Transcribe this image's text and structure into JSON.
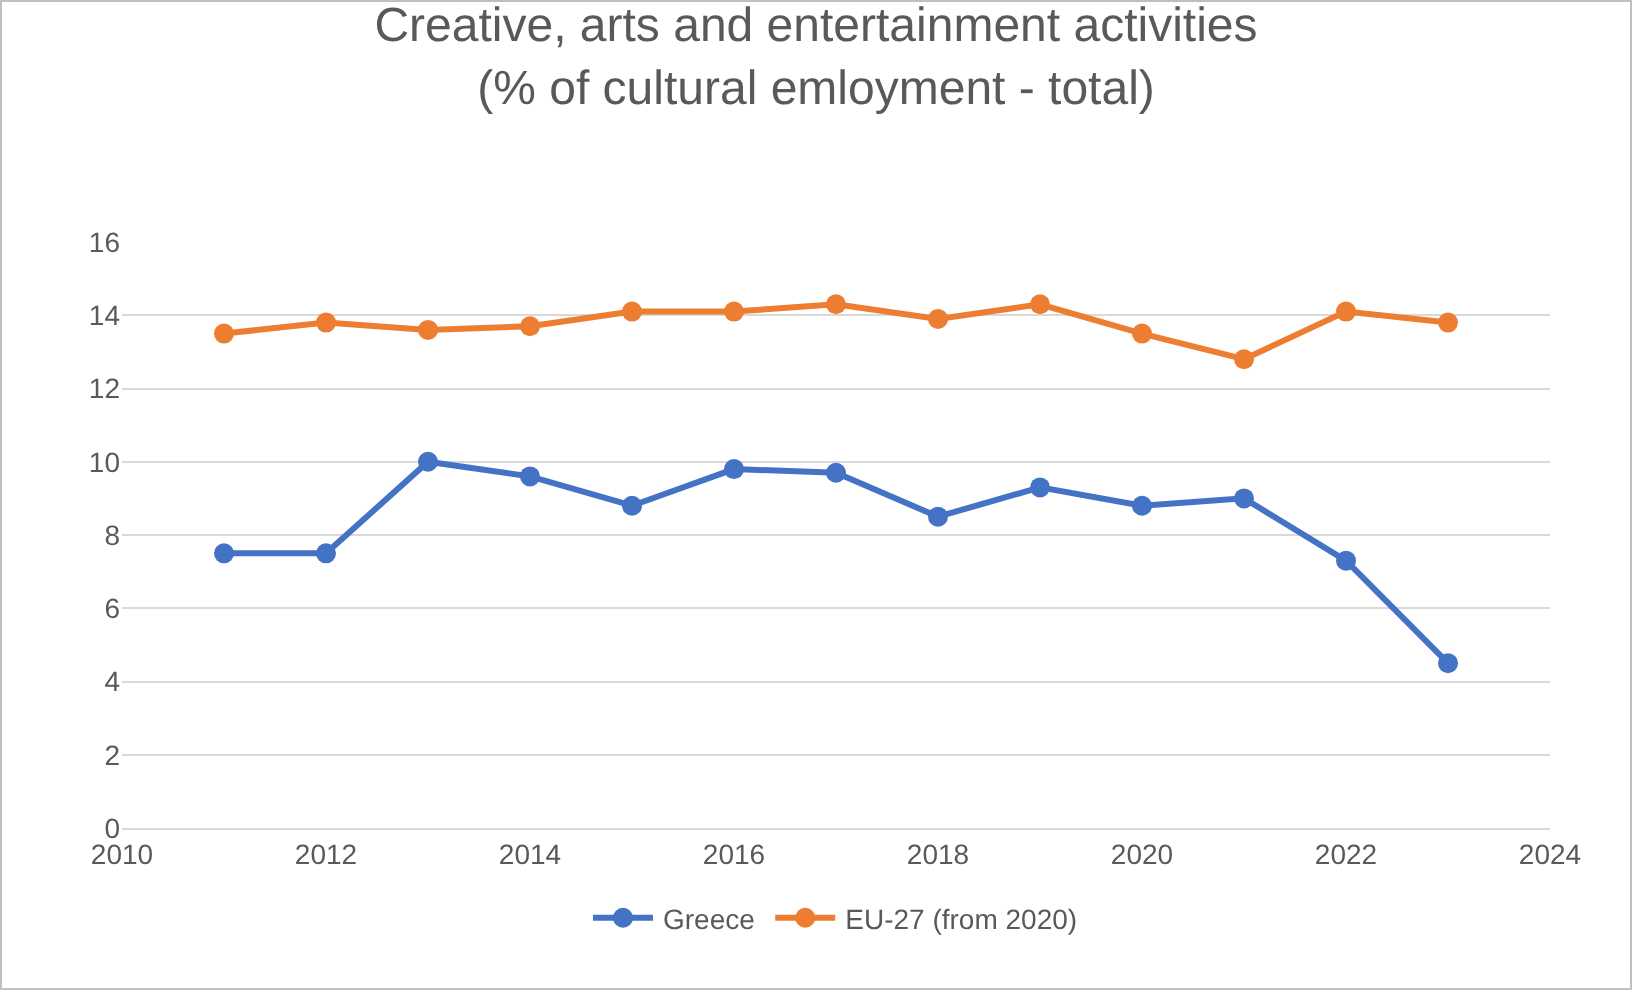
{
  "chart_data": {
    "type": "line",
    "title": "Creative, arts and entertainment activities\n(% of cultural emloyment - total)",
    "x": [
      2011,
      2012,
      2013,
      2014,
      2015,
      2016,
      2017,
      2018,
      2019,
      2020,
      2021,
      2022,
      2023
    ],
    "series": [
      {
        "name": "Greece",
        "color": "#4472c4",
        "values": [
          7.5,
          7.5,
          10.0,
          9.6,
          8.8,
          9.8,
          9.7,
          8.5,
          9.3,
          8.8,
          9.0,
          7.3,
          4.5
        ]
      },
      {
        "name": "EU-27 (from 2020)",
        "color": "#ed7d31",
        "values": [
          13.5,
          13.8,
          13.6,
          13.7,
          14.1,
          14.1,
          14.3,
          13.9,
          14.3,
          13.5,
          12.8,
          14.1,
          13.8
        ]
      }
    ],
    "xlim": [
      2010,
      2024
    ],
    "xticks": [
      2010,
      2012,
      2014,
      2016,
      2018,
      2020,
      2022,
      2024
    ],
    "ylim": [
      0,
      16
    ],
    "yticks": [
      0,
      2,
      4,
      6,
      8,
      10,
      12,
      14,
      16
    ],
    "grid": "y",
    "legend": "bottom",
    "marker": "circle",
    "line_style": "solid"
  }
}
